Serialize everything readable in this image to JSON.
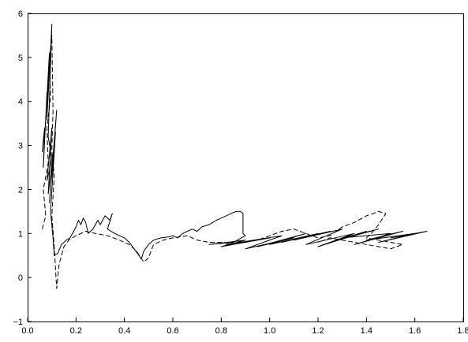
{
  "chart_data": {
    "type": "line",
    "title": "",
    "xlabel": "",
    "ylabel": "",
    "xlim": [
      0.0,
      1.8
    ],
    "ylim": [
      -1,
      6
    ],
    "xticks": [
      0.0,
      0.2,
      0.4,
      0.6,
      0.8,
      1.0,
      1.2,
      1.4,
      1.6,
      1.8
    ],
    "yticks": [
      -1,
      0,
      1,
      2,
      3,
      4,
      5,
      6
    ],
    "xtick_labels": [
      "0.0",
      "0.2",
      "0.4",
      "0.6",
      "0.8",
      "1.0",
      "1.2",
      "1.4",
      "1.6",
      "1.8"
    ],
    "ytick_labels": [
      "−1",
      "0",
      "1",
      "2",
      "3",
      "4",
      "5",
      "6"
    ],
    "grid": false,
    "legend": "none",
    "series": [
      {
        "style": "solid",
        "color": "#000000",
        "points": [
          [
            0.06,
            2.85
          ],
          [
            0.07,
            3.4
          ],
          [
            0.065,
            2.5
          ],
          [
            0.08,
            4.2
          ],
          [
            0.07,
            3.1
          ],
          [
            0.09,
            5.1
          ],
          [
            0.08,
            3.6
          ],
          [
            0.1,
            5.75
          ],
          [
            0.085,
            3.2
          ],
          [
            0.1,
            2.7
          ],
          [
            0.08,
            2.2
          ],
          [
            0.1,
            3.4
          ],
          [
            0.085,
            1.9
          ],
          [
            0.11,
            3.0
          ],
          [
            0.09,
            1.7
          ],
          [
            0.12,
            3.8
          ],
          [
            0.1,
            2.3
          ],
          [
            0.115,
            3.3
          ],
          [
            0.095,
            1.5
          ],
          [
            0.105,
            0.9
          ],
          [
            0.11,
            0.5
          ],
          [
            0.125,
            0.55
          ],
          [
            0.14,
            0.75
          ],
          [
            0.16,
            0.85
          ],
          [
            0.175,
            0.9
          ],
          [
            0.19,
            1.05
          ],
          [
            0.18,
            0.95
          ],
          [
            0.2,
            1.15
          ],
          [
            0.21,
            1.3
          ],
          [
            0.22,
            1.2
          ],
          [
            0.23,
            1.35
          ],
          [
            0.24,
            1.25
          ],
          [
            0.25,
            1.0
          ],
          [
            0.27,
            1.1
          ],
          [
            0.29,
            1.3
          ],
          [
            0.3,
            1.2
          ],
          [
            0.32,
            1.4
          ],
          [
            0.34,
            1.3
          ],
          [
            0.35,
            1.45
          ],
          [
            0.33,
            1.1
          ],
          [
            0.36,
            1.0
          ],
          [
            0.38,
            0.95
          ],
          [
            0.4,
            0.9
          ],
          [
            0.42,
            0.8
          ],
          [
            0.44,
            0.65
          ],
          [
            0.46,
            0.5
          ],
          [
            0.47,
            0.42
          ],
          [
            0.48,
            0.6
          ],
          [
            0.5,
            0.75
          ],
          [
            0.52,
            0.85
          ],
          [
            0.55,
            0.9
          ],
          [
            0.58,
            0.92
          ],
          [
            0.6,
            0.95
          ],
          [
            0.62,
            0.9
          ],
          [
            0.64,
            1.0
          ],
          [
            0.66,
            1.05
          ],
          [
            0.68,
            1.1
          ],
          [
            0.7,
            1.05
          ],
          [
            0.72,
            1.15
          ],
          [
            0.75,
            1.2
          ],
          [
            0.78,
            1.3
          ],
          [
            0.8,
            1.35
          ],
          [
            0.82,
            1.4
          ],
          [
            0.84,
            1.45
          ],
          [
            0.86,
            1.5
          ],
          [
            0.88,
            1.5
          ],
          [
            0.89,
            1.45
          ],
          [
            0.89,
            1.0
          ],
          [
            0.9,
            0.95
          ],
          [
            0.85,
            0.8
          ],
          [
            0.75,
            0.75
          ],
          [
            0.9,
            0.85
          ],
          [
            0.8,
            0.7
          ],
          [
            1.0,
            0.9
          ],
          [
            0.82,
            0.75
          ],
          [
            1.05,
            0.95
          ],
          [
            0.9,
            0.65
          ],
          [
            1.1,
            0.9
          ],
          [
            0.95,
            0.7
          ],
          [
            1.15,
            1.0
          ],
          [
            1.0,
            0.75
          ],
          [
            1.2,
            1.0
          ],
          [
            1.05,
            0.8
          ],
          [
            1.25,
            1.05
          ],
          [
            1.1,
            0.85
          ],
          [
            1.3,
            1.1
          ],
          [
            1.15,
            0.75
          ],
          [
            1.35,
            1.0
          ],
          [
            1.2,
            0.7
          ],
          [
            1.4,
            1.05
          ],
          [
            1.25,
            0.8
          ],
          [
            1.45,
            1.1
          ],
          [
            1.3,
            0.9
          ],
          [
            1.5,
            1.0
          ],
          [
            1.35,
            0.75
          ],
          [
            1.55,
            1.05
          ],
          [
            1.4,
            0.85
          ],
          [
            1.6,
            1.0
          ],
          [
            1.45,
            0.8
          ],
          [
            1.65,
            1.05
          ],
          [
            1.5,
            0.9
          ],
          [
            1.6,
            1.0
          ]
        ]
      },
      {
        "style": "dashed",
        "color": "#000000",
        "points": [
          [
            0.06,
            1.1
          ],
          [
            0.075,
            1.4
          ],
          [
            0.065,
            2.0
          ],
          [
            0.085,
            2.6
          ],
          [
            0.08,
            3.4
          ],
          [
            0.095,
            4.1
          ],
          [
            0.09,
            4.9
          ],
          [
            0.1,
            5.5
          ],
          [
            0.105,
            3.8
          ],
          [
            0.1,
            2.9
          ],
          [
            0.11,
            2.3
          ],
          [
            0.1,
            1.4
          ],
          [
            0.11,
            0.7
          ],
          [
            0.12,
            -0.25
          ],
          [
            0.13,
            0.3
          ],
          [
            0.15,
            0.7
          ],
          [
            0.17,
            0.85
          ],
          [
            0.2,
            0.95
          ],
          [
            0.24,
            1.05
          ],
          [
            0.28,
            1.0
          ],
          [
            0.33,
            0.95
          ],
          [
            0.38,
            0.85
          ],
          [
            0.42,
            0.75
          ],
          [
            0.45,
            0.6
          ],
          [
            0.48,
            0.35
          ],
          [
            0.5,
            0.45
          ],
          [
            0.52,
            0.75
          ],
          [
            0.56,
            0.85
          ],
          [
            0.6,
            0.9
          ],
          [
            0.66,
            0.95
          ],
          [
            0.7,
            0.85
          ],
          [
            0.75,
            0.8
          ],
          [
            0.8,
            0.8
          ],
          [
            0.85,
            0.78
          ],
          [
            0.9,
            0.8
          ],
          [
            0.95,
            0.85
          ],
          [
            1.0,
            0.95
          ],
          [
            1.05,
            1.05
          ],
          [
            1.1,
            1.1
          ],
          [
            1.15,
            1.0
          ],
          [
            1.2,
            0.9
          ],
          [
            1.25,
            0.95
          ],
          [
            1.3,
            1.15
          ],
          [
            1.35,
            1.25
          ],
          [
            1.4,
            1.4
          ],
          [
            1.45,
            1.5
          ],
          [
            1.48,
            1.45
          ],
          [
            1.45,
            1.2
          ],
          [
            1.42,
            1.0
          ],
          [
            1.4,
            0.9
          ],
          [
            1.5,
            0.8
          ],
          [
            1.55,
            0.75
          ],
          [
            1.5,
            0.65
          ],
          [
            1.45,
            0.7
          ],
          [
            1.4,
            0.75
          ],
          [
            1.35,
            0.8
          ],
          [
            1.3,
            0.85
          ],
          [
            1.25,
            0.9
          ],
          [
            1.2,
            0.8
          ]
        ]
      }
    ]
  }
}
